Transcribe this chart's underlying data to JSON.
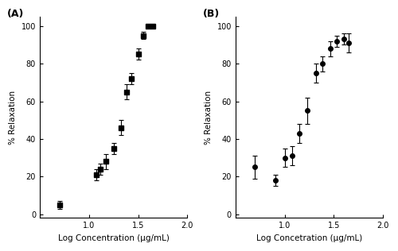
{
  "panel_A": {
    "label": "(A)",
    "x_data": [
      0.699,
      1.076,
      1.114,
      1.176,
      1.255,
      1.322,
      1.38,
      1.431,
      1.505,
      1.556,
      1.602,
      1.653
    ],
    "y_data": [
      5,
      21,
      24,
      28,
      35,
      46,
      65,
      72,
      85,
      95,
      100,
      100
    ],
    "y_err": [
      2,
      3,
      3,
      4,
      3,
      4,
      4,
      3,
      3,
      2,
      1,
      1
    ],
    "marker": "s",
    "xlabel": "Log Concentration (μg/mL)",
    "ylabel": "% Relaxation",
    "xlim": [
      0.6,
      2.0
    ],
    "ylim": [
      -2,
      105
    ],
    "yticks": [
      0,
      20,
      40,
      60,
      80,
      100
    ],
    "xticks": [
      0.5,
      1.0,
      1.5,
      2.0
    ],
    "fit_p0": [
      0,
      100,
      1.35,
      5
    ],
    "fit_bounds_low": [
      0,
      95,
      0.8,
      1
    ],
    "fit_bounds_high": [
      5,
      105,
      2.0,
      20
    ]
  },
  "panel_B": {
    "label": "(B)",
    "x_data": [
      0.699,
      0.903,
      1.0,
      1.079,
      1.146,
      1.23,
      1.322,
      1.38,
      1.462,
      1.531,
      1.602,
      1.653
    ],
    "y_data": [
      25,
      18,
      30,
      31,
      43,
      55,
      75,
      80,
      88,
      92,
      93,
      91
    ],
    "y_err": [
      6,
      3,
      5,
      5,
      5,
      7,
      5,
      4,
      4,
      3,
      3,
      5
    ],
    "marker": "o",
    "xlabel": "Log Concetration (μg/mL)",
    "ylabel": "% Relaxation",
    "xlim": [
      0.6,
      2.0
    ],
    "ylim": [
      -2,
      105
    ],
    "yticks": [
      0,
      20,
      40,
      60,
      80,
      100
    ],
    "xticks": [
      0.5,
      1.0,
      1.5,
      2.0
    ],
    "fit_p0": [
      0,
      100,
      1.3,
      4
    ],
    "fit_bounds_low": [
      0,
      90,
      0.8,
      1
    ],
    "fit_bounds_high": [
      10,
      105,
      2.0,
      20
    ]
  },
  "background_color": "#ffffff",
  "line_color": "#000000",
  "marker_color": "#000000",
  "marker_size": 4,
  "linewidth": 1.0,
  "capsize": 2,
  "elinewidth": 0.8,
  "label_fontsize": 7.5,
  "tick_fontsize": 7,
  "panel_label_fontsize": 9
}
